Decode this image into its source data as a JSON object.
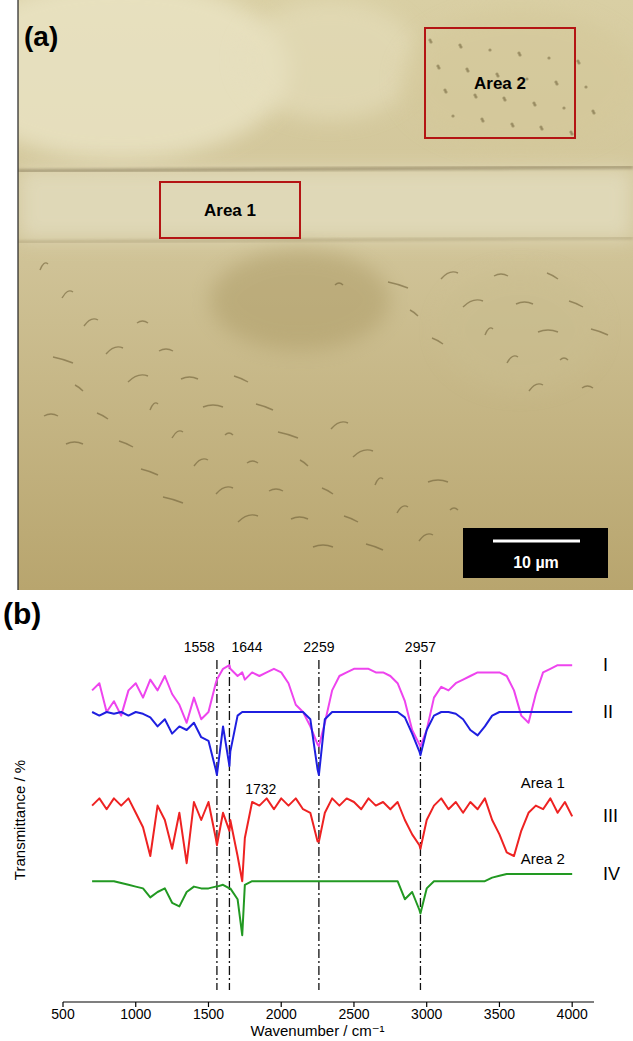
{
  "image_panel": {
    "panel_label": "(a)",
    "regions": [
      {
        "label": "Area 1"
      },
      {
        "label": "Area 2"
      }
    ],
    "scale_bar": "10 µm"
  },
  "chart_data": {
    "type": "line",
    "panel_label": "(b)",
    "x_label": "Wavenumber / cm⁻¹",
    "y_label": "Transmittance / %",
    "x": [
      700,
      750,
      800,
      850,
      900,
      950,
      1000,
      1050,
      1100,
      1150,
      1200,
      1250,
      1300,
      1350,
      1400,
      1450,
      1500,
      1550,
      1558,
      1600,
      1644,
      1650,
      1700,
      1732,
      1750,
      1800,
      1850,
      1900,
      1950,
      2000,
      2050,
      2100,
      2150,
      2200,
      2250,
      2259,
      2300,
      2350,
      2400,
      2450,
      2500,
      2550,
      2600,
      2650,
      2700,
      2750,
      2800,
      2850,
      2900,
      2950,
      2957,
      3000,
      3050,
      3100,
      3150,
      3200,
      3250,
      3300,
      3350,
      3400,
      3450,
      3500,
      3550,
      3600,
      3650,
      3700,
      3750,
      3800,
      3850,
      3900,
      3950,
      4000
    ],
    "xlim": [
      500,
      4150
    ],
    "xticks": [
      500,
      1000,
      1500,
      2000,
      2500,
      3000,
      3500,
      4000
    ],
    "ylim": [
      0,
      100
    ],
    "tick_labels": "x",
    "series": [
      {
        "name": "I",
        "color": "#ee44ee",
        "values": [
          86,
          88,
          80,
          83,
          79,
          86,
          88,
          84,
          89,
          86,
          90,
          85,
          82,
          77,
          84,
          78,
          80,
          88,
          89,
          92,
          93,
          92,
          90,
          91,
          89,
          91,
          90,
          91,
          92,
          91,
          88,
          82,
          80,
          76,
          71,
          70.5,
          77,
          86,
          90,
          91,
          92,
          92,
          92,
          91,
          91,
          90,
          88,
          83,
          75,
          71,
          70.5,
          75,
          84,
          87,
          86,
          88,
          89,
          90,
          91,
          91,
          91,
          91,
          90,
          86,
          79,
          77,
          85,
          91,
          92,
          93,
          93,
          93
        ]
      },
      {
        "name": "II",
        "color": "#1f1fe0",
        "values": [
          80,
          79,
          80,
          79.5,
          80,
          79,
          80,
          79.5,
          78.5,
          76,
          78,
          74,
          76,
          75,
          77,
          73,
          72,
          64,
          62.5,
          76,
          65,
          69,
          79,
          80,
          80,
          80,
          80,
          80,
          80,
          80,
          80,
          80,
          80,
          78,
          64,
          62.5,
          78,
          80,
          80,
          80,
          80,
          80,
          80,
          80,
          80,
          80,
          80,
          78.5,
          74,
          69,
          68,
          75,
          79,
          80,
          80,
          79.5,
          78,
          75,
          73.5,
          76,
          79,
          80,
          80,
          80,
          80,
          80,
          80,
          80,
          80,
          80,
          80,
          80
        ]
      },
      {
        "name": "III",
        "color": "#ee2222",
        "values": [
          54,
          56,
          53,
          56,
          54,
          56,
          52,
          48,
          40,
          54,
          50,
          42,
          52,
          38,
          55,
          50,
          55,
          45,
          43,
          52,
          47,
          50,
          40,
          33,
          45,
          55,
          54,
          56,
          53,
          56,
          54,
          56,
          53,
          52,
          44,
          44,
          52,
          56,
          54,
          56,
          55,
          53,
          56,
          54,
          55,
          53,
          55,
          50,
          46,
          43,
          42,
          50,
          54,
          56,
          53,
          55,
          52,
          55,
          53,
          56,
          50,
          46,
          41,
          40,
          47,
          52,
          54,
          53,
          56,
          52,
          55,
          51
        ]
      },
      {
        "name": "IV",
        "color": "#229922",
        "values": [
          33,
          33,
          33,
          33,
          32.5,
          32,
          31.5,
          31,
          28.5,
          30,
          31,
          27,
          26,
          30,
          31.5,
          31,
          31,
          31.5,
          31.5,
          32,
          31,
          31,
          28,
          18,
          32,
          33,
          33,
          33,
          33,
          33,
          33,
          33,
          33,
          33,
          33,
          33,
          33,
          33,
          33,
          33,
          33,
          33,
          33,
          33,
          33,
          33,
          33,
          28,
          30,
          25,
          24,
          31,
          33,
          33,
          33,
          33,
          33,
          33,
          33,
          33,
          34,
          34.5,
          35,
          35,
          35,
          35,
          35,
          35,
          35,
          35,
          35,
          35
        ]
      }
    ],
    "annotations": [
      {
        "text": "1558",
        "x": 1558
      },
      {
        "text": "1644",
        "x": 1644
      },
      {
        "text": "2259",
        "x": 2259
      },
      {
        "text": "2957",
        "x": 2957
      },
      {
        "text": "1732",
        "x": 1732,
        "series": 2
      },
      {
        "text": "Area 1",
        "series": 2
      },
      {
        "text": "Area 2",
        "series": 3
      }
    ]
  }
}
